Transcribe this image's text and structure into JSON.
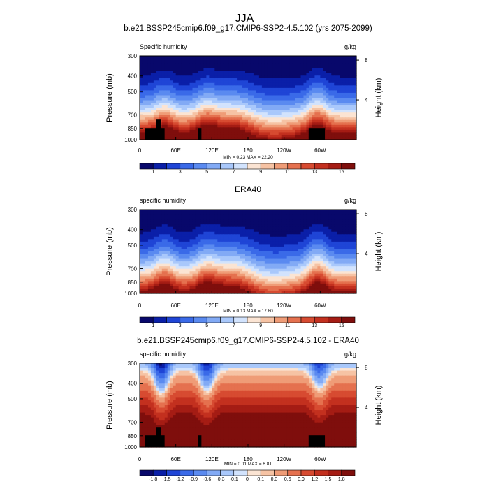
{
  "figure": {
    "main_title": "JJA"
  },
  "colors": {
    "palette": [
      "#08086b",
      "#0a1fa8",
      "#1f45d6",
      "#3a6ae8",
      "#5a8af0",
      "#82aaf5",
      "#a9c8fb",
      "#d2e3fd",
      "#fbe4d3",
      "#f6c3a4",
      "#ef9c77",
      "#e5714f",
      "#d74b31",
      "#c3301f",
      "#a51c14",
      "#7f0e0c"
    ],
    "land_mask": "#000000"
  },
  "chart_data": [
    {
      "type": "heatmap",
      "title": "b.e21.BSSP245cmip6.f09_g17.CMIP6-SSP2-4.5.102 (yrs 2075-2099)",
      "left_label": "Specific humidity",
      "right_label": "g/kg",
      "ylabel": "Pressure (mb)",
      "y2label": "Height (km)",
      "xticks": [
        "0",
        "60E",
        "120E",
        "180",
        "120W",
        "60W"
      ],
      "yticks": [
        "300",
        "400",
        "500",
        "700",
        "850",
        "1000"
      ],
      "y2ticks": [
        "8",
        "4"
      ],
      "stats_text": "MIN =   0.23  MAX =  22.20",
      "min": 0.23,
      "max": 22.2,
      "colorbar_labels": [
        "1",
        "3",
        "5",
        "7",
        "9",
        "11",
        "13",
        "15"
      ],
      "colorbar_levels": [
        0,
        1,
        2,
        3,
        4,
        5,
        6,
        7,
        8,
        9,
        10,
        11,
        12,
        13,
        14,
        15,
        16
      ]
    },
    {
      "type": "heatmap",
      "title": "ERA40",
      "left_label": "specific humidity",
      "right_label": "g/kg",
      "ylabel": "Pressure (mb)",
      "y2label": "Height (km)",
      "xticks": [
        "0",
        "60E",
        "120E",
        "180",
        "120W",
        "60W"
      ],
      "yticks": [
        "300",
        "400",
        "500",
        "700",
        "850",
        "1000"
      ],
      "y2ticks": [
        "8",
        "4"
      ],
      "stats_text": "MIN =   0.13  MAX =  17.80",
      "min": 0.13,
      "max": 17.8,
      "colorbar_labels": [
        "1",
        "3",
        "5",
        "7",
        "9",
        "11",
        "13",
        "15"
      ],
      "colorbar_levels": [
        0,
        1,
        2,
        3,
        4,
        5,
        6,
        7,
        8,
        9,
        10,
        11,
        12,
        13,
        14,
        15,
        16
      ]
    },
    {
      "type": "heatmap",
      "title": "b.e21.BSSP245cmip6.f09_g17.CMIP6-SSP2-4.5.102 - ERA40",
      "left_label": "specific humidity",
      "right_label": "g/kg",
      "ylabel": "Pressure (mb)",
      "y2label": "Height (km)",
      "xticks": [
        "0",
        "60E",
        "120E",
        "180",
        "120W",
        "60W"
      ],
      "yticks": [
        "300",
        "400",
        "500",
        "700",
        "850",
        "1000"
      ],
      "y2ticks": [
        "8",
        "4"
      ],
      "stats_text": "MIN =   0.01  MAX =   6.81",
      "min": 0.01,
      "max": 6.81,
      "colorbar_labels": [
        "-1.8",
        "-1.5",
        "-1.2",
        "-0.9",
        "-0.6",
        "-0.3",
        "-0.1",
        "0",
        "0.1",
        "0.3",
        "0.6",
        "0.9",
        "1.2",
        "1.5",
        "1.8"
      ],
      "colorbar_levels": [
        -2.1,
        -1.8,
        -1.5,
        -1.2,
        -0.9,
        -0.6,
        -0.3,
        -0.1,
        0,
        0.1,
        0.3,
        0.6,
        0.9,
        1.2,
        1.5,
        1.8,
        2.1
      ]
    }
  ]
}
